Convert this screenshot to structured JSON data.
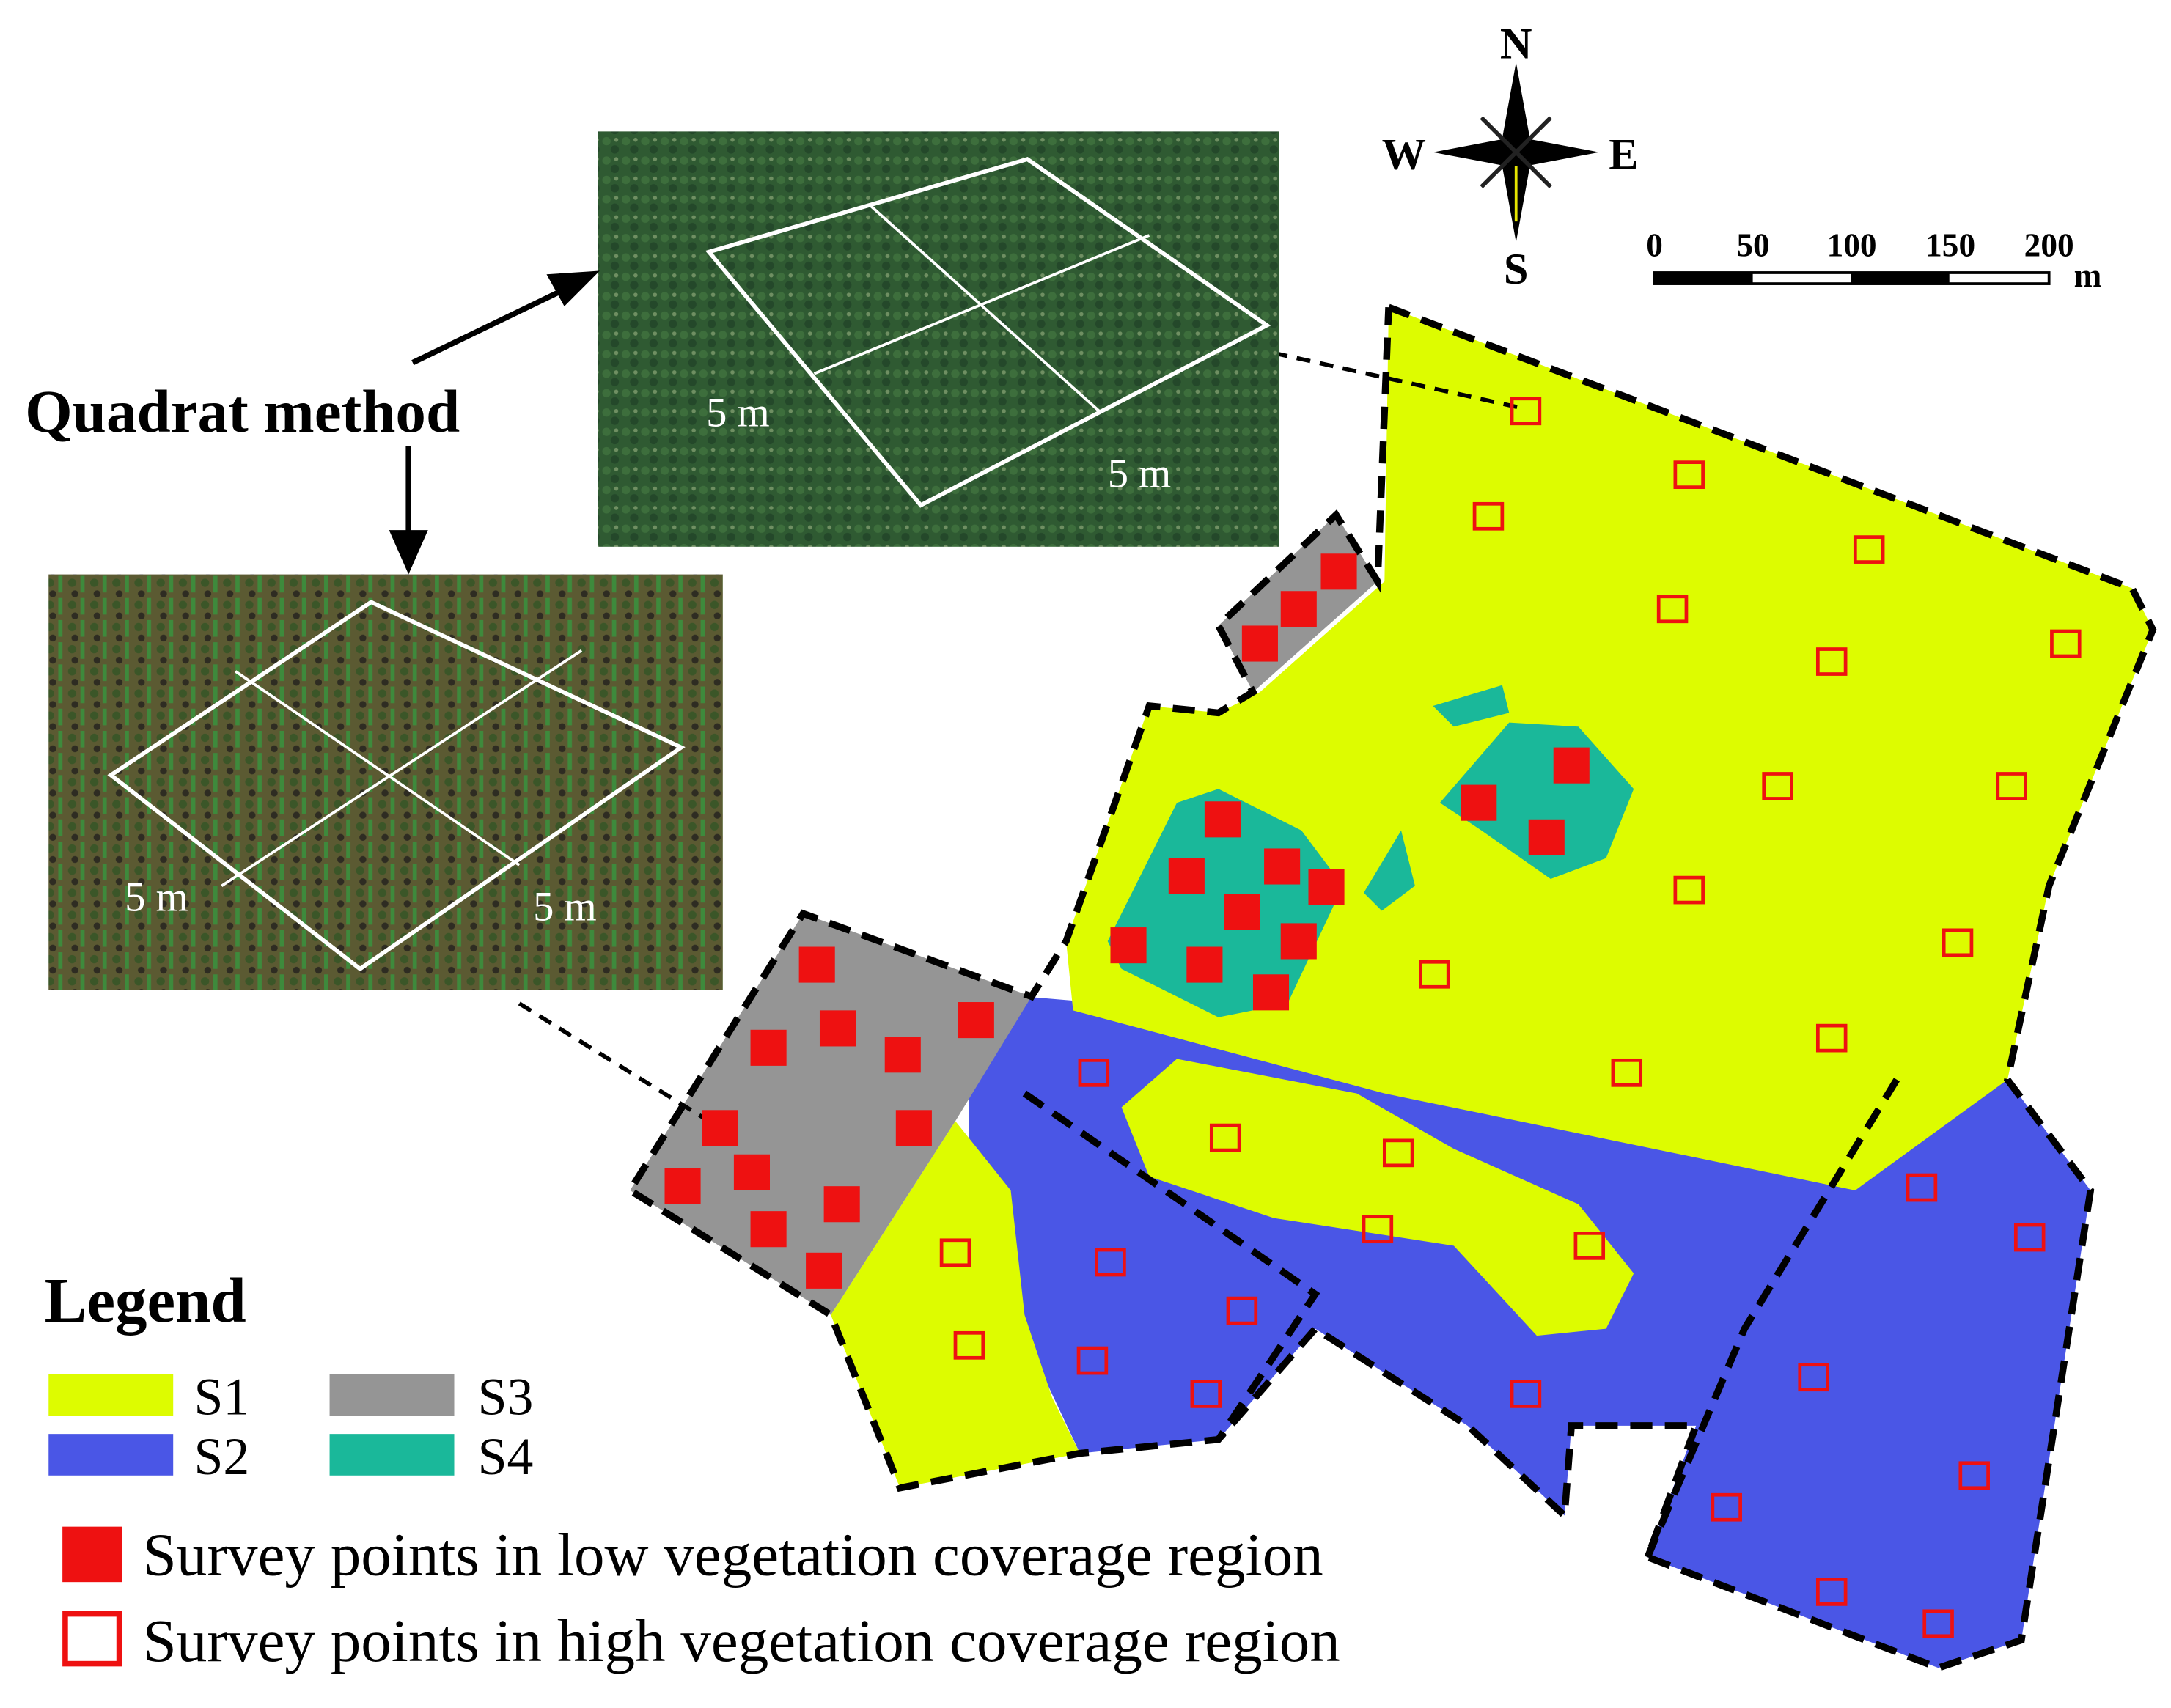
{
  "title": "Quadrat method",
  "compass": {
    "north": "N",
    "south": "S",
    "east": "E",
    "west": "W"
  },
  "scale_bar": {
    "labels": [
      "0",
      "50",
      "100",
      "150",
      "200"
    ],
    "unit": "m"
  },
  "photos": [
    {
      "labels": [
        "5 m",
        "5 m"
      ]
    },
    {
      "labels": [
        "5 m",
        "5 m"
      ]
    }
  ],
  "legend": {
    "title": "Legend",
    "classes": [
      "S1",
      "S2",
      "S3",
      "S4"
    ],
    "points": [
      "Survey points in low vegetation coverage region",
      "Survey points in high vegetation coverage region"
    ]
  }
}
